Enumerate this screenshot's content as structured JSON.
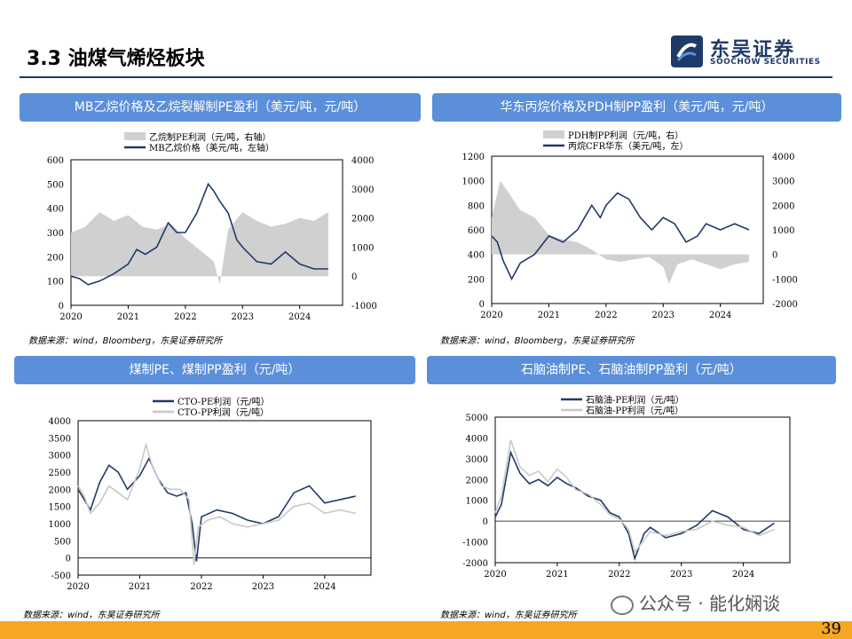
{
  "header": {
    "title": "3.3 油煤气烯烃板块",
    "logo_cn": "东吴证券",
    "logo_en": "SOOCHOW SECURITIES"
  },
  "page_number": "39",
  "watermark": "公众号 · 能化娴谈",
  "panels": [
    {
      "title": "MB乙烷价格及乙烷裂解制PE盈利（美元/吨，元/吨）",
      "source": "数据来源：wind，Bloomberg，东吴证券研究所"
    },
    {
      "title": "华东丙烷价格及PDH制PP盈利（美元/吨，元/吨）",
      "source": "数据来源：wind，Bloomberg，东吴证券研究所"
    },
    {
      "title": "煤制PE、煤制PP盈利（元/吨）",
      "source": "数据来源：wind，东吴证券研究所"
    },
    {
      "title": "石脑油制PE、石脑油制PP盈利（元/吨）",
      "source": "数据来源：wind，东吴证券研究所"
    }
  ],
  "chart_data": [
    {
      "type": "area+line",
      "x_ticks": [
        "2020",
        "2021",
        "2022",
        "2023",
        "2024"
      ],
      "y_left": {
        "range": [
          0,
          600
        ],
        "ticks": [
          0,
          100,
          200,
          300,
          400,
          500,
          600
        ]
      },
      "y_right": {
        "range": [
          -1000,
          4000
        ],
        "ticks": [
          -1000,
          0,
          1000,
          2000,
          3000,
          4000
        ]
      },
      "series": [
        {
          "name": "乙烷制PE利润（元/吨，右轴）",
          "axis": "right",
          "style": "area",
          "color": "#d0d0d0",
          "x": [
            2020.0,
            2020.25,
            2020.5,
            2020.75,
            2021.0,
            2021.25,
            2021.5,
            2021.75,
            2022.0,
            2022.25,
            2022.5,
            2022.6,
            2022.75,
            2023.0,
            2023.25,
            2023.5,
            2023.75,
            2024.0,
            2024.25,
            2024.5
          ],
          "values": [
            1500,
            1700,
            2200,
            1900,
            2100,
            1700,
            1600,
            1800,
            1300,
            900,
            500,
            -300,
            1600,
            2200,
            1900,
            1700,
            1800,
            2000,
            1900,
            2200
          ]
        },
        {
          "name": "MB乙烷价格（美元/吨，左轴）",
          "axis": "left",
          "style": "line",
          "color": "#1f3a68",
          "x": [
            2020.0,
            2020.15,
            2020.3,
            2020.5,
            2020.75,
            2021.0,
            2021.15,
            2021.3,
            2021.5,
            2021.7,
            2021.85,
            2022.0,
            2022.2,
            2022.4,
            2022.5,
            2022.6,
            2022.75,
            2022.9,
            2023.0,
            2023.25,
            2023.5,
            2023.75,
            2024.0,
            2024.25,
            2024.5
          ],
          "values": [
            120,
            110,
            85,
            100,
            130,
            170,
            230,
            210,
            240,
            340,
            300,
            300,
            380,
            500,
            470,
            430,
            380,
            270,
            240,
            180,
            170,
            220,
            170,
            150,
            150
          ]
        }
      ]
    },
    {
      "type": "area+line",
      "x_ticks": [
        "2020",
        "2021",
        "2022",
        "2023",
        "2024"
      ],
      "y_left": {
        "range": [
          0,
          1200
        ],
        "ticks": [
          0,
          200,
          400,
          600,
          800,
          1000,
          1200
        ]
      },
      "y_right": {
        "range": [
          -2000,
          4000
        ],
        "ticks": [
          -2000,
          -1000,
          0,
          1000,
          2000,
          3000,
          4000
        ]
      },
      "series": [
        {
          "name": "PDH制PP利润（元/吨，右）",
          "axis": "right",
          "style": "area",
          "color": "#d0d0d0",
          "x": [
            2020.0,
            2020.15,
            2020.3,
            2020.5,
            2020.75,
            2021.0,
            2021.25,
            2021.5,
            2021.75,
            2022.0,
            2022.25,
            2022.5,
            2022.75,
            2023.0,
            2023.1,
            2023.25,
            2023.5,
            2023.75,
            2024.0,
            2024.25,
            2024.5
          ],
          "values": [
            1500,
            3000,
            2500,
            1800,
            1500,
            800,
            600,
            500,
            200,
            -200,
            -300,
            -200,
            -100,
            -500,
            -1200,
            -400,
            -200,
            -400,
            -600,
            -400,
            -300
          ]
        },
        {
          "name": "丙烷CFR华东（美元/吨，左）",
          "axis": "left",
          "style": "line",
          "color": "#1f3a68",
          "x": [
            2020.0,
            2020.1,
            2020.2,
            2020.35,
            2020.5,
            2020.75,
            2021.0,
            2021.25,
            2021.5,
            2021.75,
            2021.9,
            2022.0,
            2022.2,
            2022.4,
            2022.6,
            2022.8,
            2023.0,
            2023.2,
            2023.4,
            2023.6,
            2023.75,
            2024.0,
            2024.25,
            2024.5
          ],
          "values": [
            550,
            500,
            350,
            200,
            330,
            400,
            550,
            500,
            600,
            800,
            700,
            800,
            900,
            850,
            700,
            600,
            700,
            650,
            500,
            550,
            650,
            600,
            650,
            600
          ]
        }
      ]
    },
    {
      "type": "line",
      "x_ticks": [
        "2020",
        "2021",
        "2022",
        "2023",
        "2024"
      ],
      "y_left": {
        "range": [
          -500,
          4000
        ],
        "ticks": [
          -500,
          0,
          500,
          1000,
          1500,
          2000,
          2500,
          3000,
          3500,
          4000
        ]
      },
      "series": [
        {
          "name": "CTO-PE利润（元/吨）",
          "style": "line",
          "color": "#1f3a68",
          "x": [
            2020.0,
            2020.1,
            2020.2,
            2020.35,
            2020.5,
            2020.65,
            2020.8,
            2021.0,
            2021.15,
            2021.3,
            2021.45,
            2021.6,
            2021.75,
            2021.85,
            2021.92,
            2022.0,
            2022.25,
            2022.5,
            2022.75,
            2023.0,
            2023.25,
            2023.5,
            2023.75,
            2024.0,
            2024.25,
            2024.5
          ],
          "values": [
            2000,
            1700,
            1400,
            2200,
            2700,
            2500,
            2000,
            2400,
            2900,
            2300,
            1900,
            1800,
            1900,
            1000,
            -100,
            1200,
            1400,
            1300,
            1100,
            1000,
            1200,
            1900,
            2100,
            1600,
            1700,
            1800
          ]
        },
        {
          "name": "CTO-PP利润（元/吨）",
          "style": "line",
          "color": "#c8c8c8",
          "x": [
            2020.0,
            2020.1,
            2020.2,
            2020.35,
            2020.5,
            2020.65,
            2020.8,
            2021.0,
            2021.1,
            2021.2,
            2021.35,
            2021.5,
            2021.65,
            2021.8,
            2021.88,
            2021.95,
            2022.1,
            2022.3,
            2022.5,
            2022.75,
            2023.0,
            2023.25,
            2023.5,
            2023.75,
            2024.0,
            2024.25,
            2024.5
          ],
          "values": [
            2100,
            1800,
            1300,
            1600,
            2100,
            1900,
            1700,
            2600,
            3300,
            2700,
            2100,
            2000,
            2000,
            1700,
            -200,
            900,
            1100,
            1200,
            1000,
            900,
            1000,
            1100,
            1500,
            1600,
            1300,
            1400,
            1300
          ]
        }
      ]
    },
    {
      "type": "line",
      "x_ticks": [
        "2020",
        "2021",
        "2022",
        "2023",
        "2024"
      ],
      "y_left": {
        "range": [
          -2000,
          5000
        ],
        "ticks": [
          -2000,
          -1000,
          0,
          1000,
          2000,
          3000,
          4000,
          5000
        ]
      },
      "series": [
        {
          "name": "石脑油-PE利润（元/吨）",
          "style": "line",
          "color": "#1f3a68",
          "x": [
            2020.0,
            2020.1,
            2020.25,
            2020.4,
            2020.55,
            2020.7,
            2020.85,
            2021.0,
            2021.15,
            2021.3,
            2021.5,
            2021.7,
            2021.85,
            2022.0,
            2022.15,
            2022.25,
            2022.4,
            2022.5,
            2022.75,
            2023.0,
            2023.25,
            2023.5,
            2023.75,
            2024.0,
            2024.25,
            2024.5
          ],
          "values": [
            200,
            800,
            3300,
            2300,
            1800,
            2000,
            1700,
            2100,
            1800,
            1600,
            1200,
            1000,
            400,
            200,
            -600,
            -1800,
            -600,
            -300,
            -800,
            -600,
            -200,
            500,
            200,
            -400,
            -600,
            -100
          ]
        },
        {
          "name": "石脑油-PP利润（元/吨）",
          "style": "line",
          "color": "#c8c8c8",
          "x": [
            2020.0,
            2020.1,
            2020.25,
            2020.4,
            2020.55,
            2020.7,
            2020.85,
            2021.0,
            2021.15,
            2021.3,
            2021.5,
            2021.7,
            2021.85,
            2022.0,
            2022.15,
            2022.25,
            2022.4,
            2022.5,
            2022.75,
            2023.0,
            2023.25,
            2023.5,
            2023.75,
            2024.0,
            2024.25,
            2024.5
          ],
          "values": [
            400,
            1200,
            3900,
            2600,
            2200,
            2400,
            1900,
            2500,
            2100,
            1500,
            1300,
            800,
            300,
            100,
            -400,
            -1500,
            -900,
            -500,
            -700,
            -500,
            -400,
            0,
            -200,
            -300,
            -700,
            -400
          ]
        }
      ]
    }
  ]
}
